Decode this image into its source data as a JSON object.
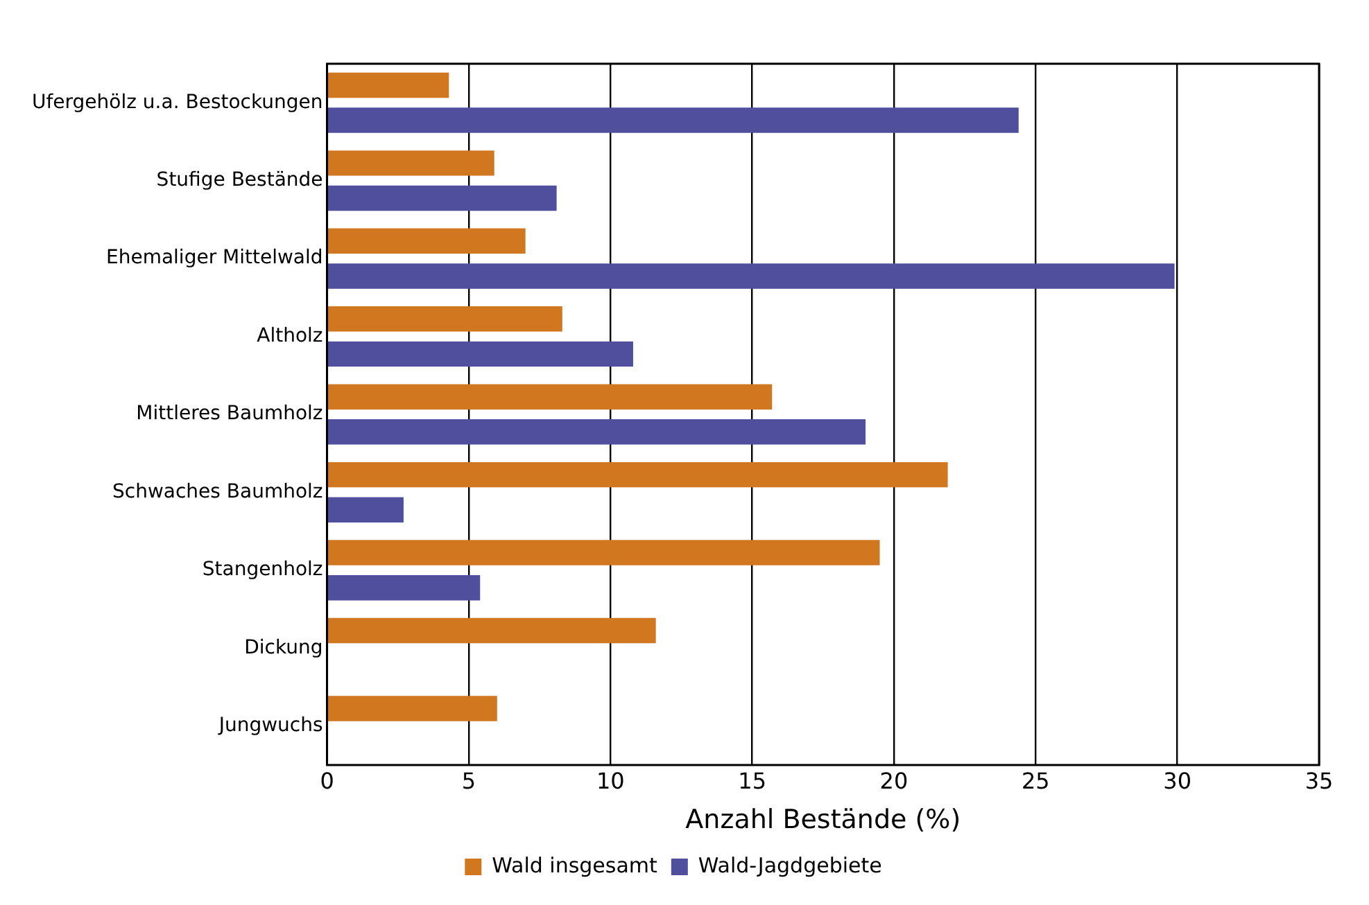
{
  "chart_data": {
    "type": "bar",
    "orientation": "horizontal",
    "xlabel": "Anzahl Bestände (%)",
    "categories": [
      "Ufergehölz u.a. Bestockungen",
      "Stufige Bestände",
      "Ehemaliger Mittelwald",
      "Altholz",
      "Mittleres Baumholz",
      "Schwaches Baumholz",
      "Stangenholz",
      "Dickung",
      "Jungwuchs"
    ],
    "series": [
      {
        "name": "Wald insgesamt",
        "color": "#d1771f",
        "values": [
          4.3,
          5.9,
          7.0,
          8.3,
          15.7,
          21.9,
          19.5,
          11.6,
          6.0
        ]
      },
      {
        "name": "Wald-Jagdgebiete",
        "color": "#4f4f9e",
        "values": [
          24.4,
          8.1,
          29.9,
          10.8,
          19.0,
          2.7,
          5.4,
          null,
          null
        ]
      }
    ],
    "xlim": [
      0,
      35
    ],
    "xticks": [
      0,
      5,
      10,
      15,
      20,
      25,
      30,
      35
    ],
    "grid": "x",
    "legend": "bottom"
  }
}
